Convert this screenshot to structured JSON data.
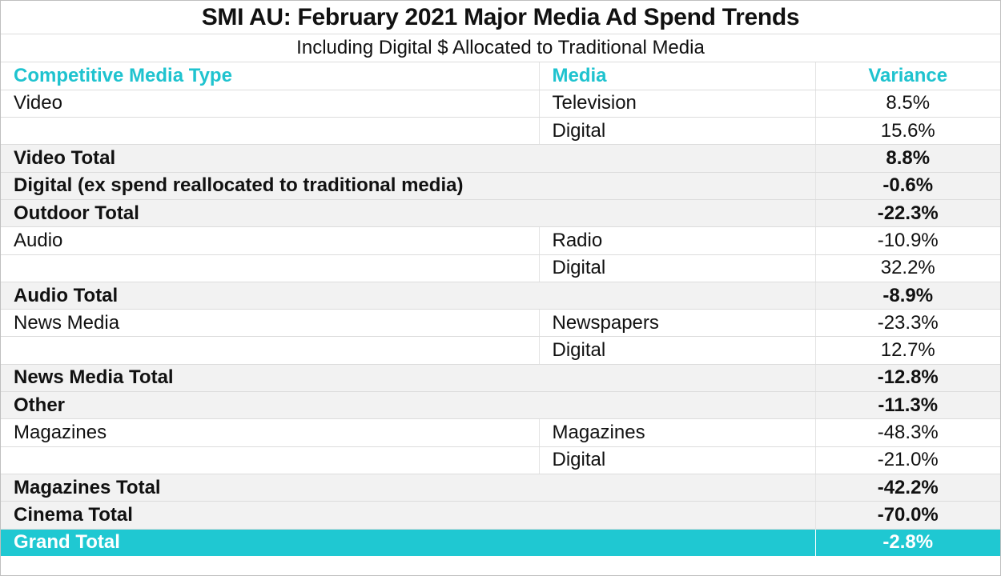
{
  "chart_data": {
    "type": "table",
    "title": "SMI AU: February 2021 Major Media Ad Spend Trends",
    "subtitle": "Including Digital $ Allocated to Traditional Media",
    "columns": [
      "Competitive Media Type",
      "Media",
      "Variance"
    ],
    "rows": [
      {
        "type": "Video",
        "media": "Television",
        "variance": "8.5%",
        "kind": "detail"
      },
      {
        "type": "",
        "media": "Digital",
        "variance": "15.6%",
        "kind": "detail"
      },
      {
        "type": "Video Total",
        "media": "",
        "variance": "8.8%",
        "kind": "total"
      },
      {
        "type": "Digital (ex spend reallocated to traditional media)",
        "media": "",
        "variance": "-0.6%",
        "kind": "total"
      },
      {
        "type": "Outdoor Total",
        "media": "",
        "variance": "-22.3%",
        "kind": "total"
      },
      {
        "type": "Audio",
        "media": "Radio",
        "variance": "-10.9%",
        "kind": "detail"
      },
      {
        "type": "",
        "media": "Digital",
        "variance": "32.2%",
        "kind": "detail"
      },
      {
        "type": "Audio Total",
        "media": "",
        "variance": "-8.9%",
        "kind": "total"
      },
      {
        "type": "News Media",
        "media": "Newspapers",
        "variance": "-23.3%",
        "kind": "detail"
      },
      {
        "type": "",
        "media": "Digital",
        "variance": "12.7%",
        "kind": "detail"
      },
      {
        "type": "News Media Total",
        "media": "",
        "variance": "-12.8%",
        "kind": "total"
      },
      {
        "type": "Other",
        "media": "",
        "variance": "-11.3%",
        "kind": "total"
      },
      {
        "type": "Magazines",
        "media": "Magazines",
        "variance": "-48.3%",
        "kind": "detail"
      },
      {
        "type": "",
        "media": "Digital",
        "variance": "-21.0%",
        "kind": "detail"
      },
      {
        "type": "Magazines Total",
        "media": "",
        "variance": "-42.2%",
        "kind": "total"
      },
      {
        "type": "Cinema Total",
        "media": "",
        "variance": "-70.0%",
        "kind": "total"
      },
      {
        "type": "Grand Total",
        "media": "",
        "variance": "-2.8%",
        "kind": "grand"
      }
    ]
  },
  "colors": {
    "accent": "#1fc8d2",
    "header_text": "#1fc3cf",
    "total_row_bg": "#f2f2f2",
    "grand_text": "#ffffff"
  }
}
